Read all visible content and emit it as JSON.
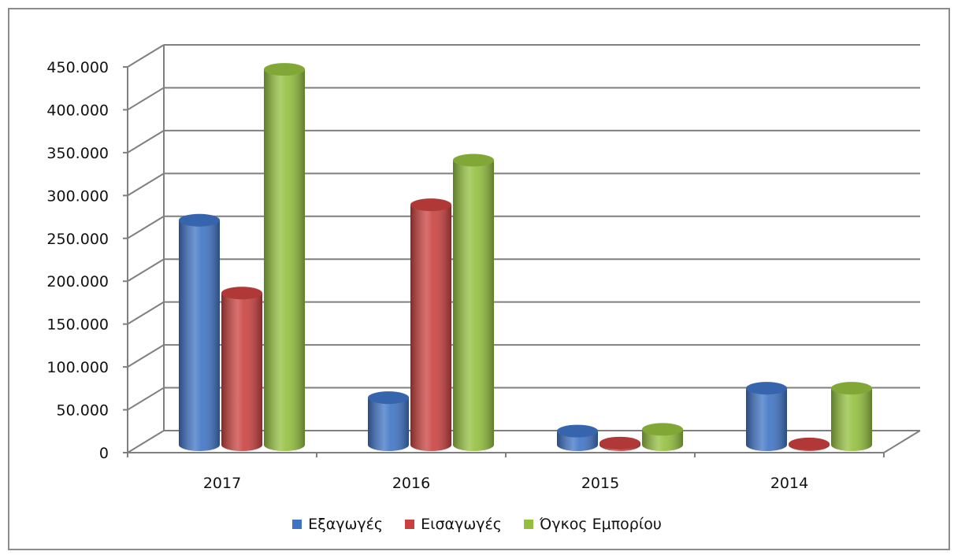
{
  "chart_data": {
    "type": "bar",
    "style": "3d-cylinder",
    "title": "",
    "xlabel": "",
    "ylabel": "",
    "categories": [
      "2017",
      "2016",
      "2015",
      "2014"
    ],
    "ylim": [
      0,
      450000
    ],
    "yticks": [
      "0",
      "50.000",
      "100.000",
      "150.000",
      "200.000",
      "250.000",
      "300.000",
      "350.000",
      "400.000",
      "450.000"
    ],
    "grid": true,
    "legend_position": "bottom",
    "series": [
      {
        "name": "Εξαγωγές",
        "color": "#3f74c5",
        "values": [
          262000,
          55000,
          16000,
          66000
        ]
      },
      {
        "name": "Εισαγωγές",
        "color": "#c9413f",
        "values": [
          177000,
          280000,
          2000,
          1000
        ]
      },
      {
        "name": "Όγκος Εμπορίου",
        "color": "#93bf3e",
        "values": [
          438000,
          332000,
          18000,
          66000
        ]
      }
    ]
  }
}
